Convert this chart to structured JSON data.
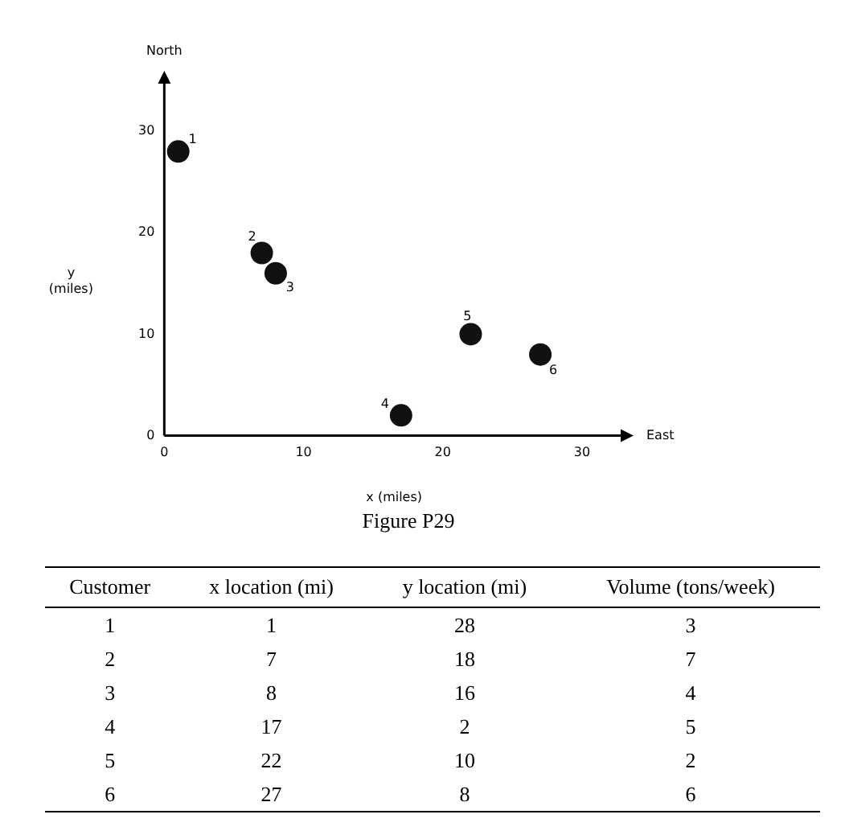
{
  "chart_data": [
    {
      "type": "scatter",
      "xlabel": "x (miles)",
      "ylabel": "y (miles)",
      "annotations": [
        "North",
        "East",
        "Figure P29",
        {
          "text": "1",
          "x": 1,
          "y": 28
        },
        {
          "text": "2",
          "x": 7,
          "y": 18
        },
        {
          "text": "3",
          "x": 8,
          "y": 16
        },
        {
          "text": "4",
          "x": 17,
          "y": 2
        },
        {
          "text": "5",
          "x": 22,
          "y": 10
        },
        {
          "text": "6",
          "x": 27,
          "y": 8
        }
      ],
      "x": [
        1,
        7,
        8,
        17,
        22,
        27
      ],
      "series": [
        {
          "color": "#111111",
          "values": [
            28,
            18,
            16,
            2,
            10,
            8
          ]
        }
      ],
      "xlim": [
        0,
        33
      ],
      "xticks": [
        0,
        10,
        20,
        30
      ],
      "ylim": [
        0,
        35
      ],
      "yticks": [
        0,
        10,
        20,
        30
      ],
      "marker": "circle"
    },
    {
      "type": "heatmap",
      "ylabel": "Customer",
      "categories": [
        "x location (mi)",
        "y location (mi)",
        "Volume (tons/week)"
      ],
      "y_categories": [
        "1",
        "2",
        "3",
        "4",
        "5",
        "6"
      ],
      "data_labels": true,
      "cells": [
        [
          1,
          28,
          3
        ],
        [
          7,
          18,
          7
        ],
        [
          8,
          16,
          4
        ],
        [
          17,
          2,
          5
        ],
        [
          22,
          10,
          2
        ],
        [
          27,
          8,
          6
        ]
      ]
    }
  ]
}
